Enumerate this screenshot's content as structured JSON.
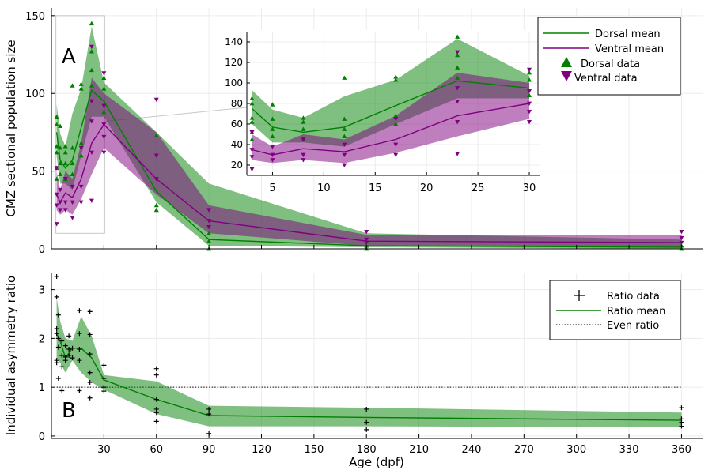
{
  "chart_data": [
    {
      "panel": "A",
      "type": "line",
      "ylabel": "CMZ sectional population size",
      "xlim": [
        0,
        372
      ],
      "ylim": [
        0,
        155
      ],
      "yticks": [
        0,
        50,
        100,
        150
      ],
      "grid": true,
      "legend_position": "top-right",
      "legend": [
        "Dorsal mean",
        "Ventral mean",
        "Dorsal data",
        "Ventral data"
      ],
      "colors": {
        "dorsal": "#008000",
        "ventral": "#800080"
      },
      "x": [
        3,
        5,
        8,
        12,
        17,
        23,
        30,
        60,
        90,
        180,
        360
      ],
      "series": [
        {
          "name": "Dorsal mean",
          "values": [
            75,
            57,
            52,
            57,
            78,
            102,
            95,
            37,
            6,
            2,
            1
          ],
          "band_low": [
            60,
            42,
            42,
            38,
            60,
            85,
            85,
            30,
            2,
            1,
            0
          ],
          "band_high": [
            93,
            74,
            66,
            87,
            103,
            143,
            107,
            75,
            42,
            10,
            6
          ]
        },
        {
          "name": "Ventral mean",
          "values": [
            35,
            30,
            36,
            33,
            45,
            68,
            80,
            45,
            18,
            5,
            4
          ],
          "band_low": [
            25,
            22,
            25,
            22,
            32,
            48,
            65,
            35,
            10,
            2,
            1
          ],
          "band_high": [
            50,
            38,
            50,
            45,
            68,
            110,
            100,
            75,
            28,
            9,
            9
          ]
        }
      ],
      "dorsal_points": [
        [
          3,
          85
        ],
        [
          3,
          80
        ],
        [
          3,
          66
        ],
        [
          3,
          62
        ],
        [
          3,
          52
        ],
        [
          3,
          45
        ],
        [
          5,
          79
        ],
        [
          5,
          65
        ],
        [
          5,
          55
        ],
        [
          5,
          48
        ],
        [
          8,
          66
        ],
        [
          8,
          62
        ],
        [
          8,
          55
        ],
        [
          8,
          45
        ],
        [
          12,
          105
        ],
        [
          12,
          65
        ],
        [
          12,
          55
        ],
        [
          12,
          48
        ],
        [
          17,
          106
        ],
        [
          17,
          103
        ],
        [
          17,
          68
        ],
        [
          17,
          60
        ],
        [
          23,
          145
        ],
        [
          23,
          127
        ],
        [
          23,
          115
        ],
        [
          23,
          105
        ],
        [
          30,
          110
        ],
        [
          30,
          103
        ],
        [
          30,
          88
        ],
        [
          60,
          73
        ],
        [
          60,
          28
        ],
        [
          60,
          25
        ],
        [
          90,
          10
        ],
        [
          90,
          5
        ],
        [
          90,
          0
        ],
        [
          180,
          5
        ],
        [
          180,
          2
        ],
        [
          180,
          0
        ],
        [
          360,
          2
        ],
        [
          360,
          0
        ]
      ],
      "ventral_points": [
        [
          3,
          52
        ],
        [
          3,
          35
        ],
        [
          3,
          28
        ],
        [
          3,
          16
        ],
        [
          5,
          38
        ],
        [
          5,
          30
        ],
        [
          5,
          25
        ],
        [
          8,
          45
        ],
        [
          8,
          30
        ],
        [
          8,
          25
        ],
        [
          12,
          40
        ],
        [
          12,
          30
        ],
        [
          12,
          20
        ],
        [
          17,
          65
        ],
        [
          17,
          40
        ],
        [
          17,
          30
        ],
        [
          23,
          130
        ],
        [
          23,
          95
        ],
        [
          23,
          82
        ],
        [
          23,
          62
        ],
        [
          23,
          31
        ],
        [
          30,
          113
        ],
        [
          30,
          92
        ],
        [
          30,
          80
        ],
        [
          30,
          72
        ],
        [
          30,
          62
        ],
        [
          60,
          96
        ],
        [
          60,
          60
        ],
        [
          60,
          45
        ],
        [
          90,
          25
        ],
        [
          90,
          18
        ],
        [
          90,
          14
        ],
        [
          180,
          11
        ],
        [
          180,
          6
        ],
        [
          180,
          4
        ],
        [
          360,
          11
        ],
        [
          360,
          7
        ],
        [
          360,
          4
        ]
      ],
      "annotation": "A",
      "inset": {
        "xlim": [
          2.5,
          31
        ],
        "ylim": [
          10,
          150
        ],
        "xticks": [
          5,
          10,
          15,
          20,
          25,
          30
        ],
        "yticks": [
          20,
          40,
          60,
          80,
          100,
          120,
          140
        ],
        "zoom_xlim": [
          3,
          30
        ],
        "zoom_ylim": [
          10,
          150
        ]
      }
    },
    {
      "panel": "B",
      "type": "line",
      "xlabel": "Age (dpf)",
      "ylabel": "Individual asymmetry ratio",
      "xlim": [
        0,
        372
      ],
      "ylim": [
        -0.05,
        3.35
      ],
      "xticks": [
        30,
        60,
        90,
        120,
        150,
        180,
        210,
        240,
        270,
        300,
        330,
        360
      ],
      "yticks": [
        0,
        1,
        2,
        3
      ],
      "grid": true,
      "legend_position": "top-right",
      "legend": [
        "Ratio data",
        "Ratio mean",
        "Even ratio"
      ],
      "colors": {
        "ratio": "#008000",
        "points": "#000000"
      },
      "x": [
        3,
        5,
        8,
        12,
        17,
        23,
        30,
        60,
        90,
        180,
        360
      ],
      "series": [
        {
          "name": "Ratio mean",
          "values": [
            2.1,
            1.95,
            1.6,
            1.8,
            1.8,
            1.6,
            1.15,
            0.75,
            0.42,
            0.38,
            0.32
          ],
          "band_low": [
            1.6,
            1.5,
            1.3,
            1.55,
            1.3,
            1.1,
            0.95,
            0.45,
            0.2,
            0.2,
            0.18
          ],
          "band_high": [
            2.85,
            2.35,
            2.0,
            1.95,
            2.45,
            2.05,
            1.25,
            1.12,
            0.62,
            0.58,
            0.48
          ]
        }
      ],
      "even_ratio": 1,
      "ratio_points": [
        [
          3,
          3.27
        ],
        [
          3,
          2.85
        ],
        [
          3,
          2.2
        ],
        [
          3,
          2.1
        ],
        [
          3,
          1.55
        ],
        [
          3,
          1.5
        ],
        [
          4,
          2.48
        ],
        [
          4,
          2.0
        ],
        [
          4,
          1.82
        ],
        [
          4,
          1.18
        ],
        [
          6,
          1.95
        ],
        [
          6,
          1.65
        ],
        [
          6,
          1.42
        ],
        [
          6,
          0.93
        ],
        [
          8,
          1.85
        ],
        [
          8,
          1.62
        ],
        [
          8,
          1.55
        ],
        [
          10,
          2.05
        ],
        [
          10,
          1.78
        ],
        [
          10,
          1.65
        ],
        [
          12,
          1.8
        ],
        [
          12,
          1.6
        ],
        [
          16,
          2.57
        ],
        [
          16,
          2.1
        ],
        [
          16,
          1.78
        ],
        [
          16,
          1.55
        ],
        [
          16,
          0.93
        ],
        [
          22,
          2.55
        ],
        [
          22,
          2.08
        ],
        [
          22,
          1.68
        ],
        [
          22,
          1.3
        ],
        [
          22,
          1.1
        ],
        [
          22,
          0.78
        ],
        [
          30,
          1.45
        ],
        [
          30,
          1.18
        ],
        [
          30,
          1.0
        ],
        [
          30,
          0.92
        ],
        [
          60,
          1.38
        ],
        [
          60,
          1.25
        ],
        [
          60,
          0.75
        ],
        [
          60,
          0.55
        ],
        [
          60,
          0.48
        ],
        [
          60,
          0.3
        ],
        [
          90,
          0.55
        ],
        [
          90,
          0.45
        ],
        [
          90,
          0.05
        ],
        [
          180,
          0.55
        ],
        [
          180,
          0.28
        ],
        [
          180,
          0.13
        ],
        [
          360,
          0.58
        ],
        [
          360,
          0.35
        ],
        [
          360,
          0.28
        ],
        [
          360,
          0.2
        ]
      ],
      "annotation": "B"
    }
  ]
}
